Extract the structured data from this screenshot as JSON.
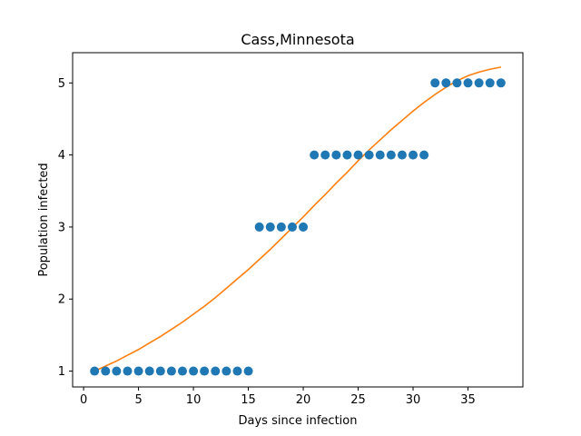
{
  "chart_data": {
    "type": "scatter",
    "title": "Cass,Minnesota",
    "xlabel": "Days since infection",
    "ylabel": "Population infected",
    "xlim": [
      -1.0,
      40.0
    ],
    "ylim": [
      0.78,
      5.42
    ],
    "xticks": [
      0,
      5,
      10,
      15,
      20,
      25,
      30,
      35
    ],
    "yticks": [
      1,
      2,
      3,
      4,
      5
    ],
    "grid": false,
    "series": [
      {
        "kind": "scatter",
        "color": "#1f77b4",
        "x": [
          1,
          2,
          3,
          4,
          5,
          6,
          7,
          8,
          9,
          10,
          11,
          12,
          13,
          14,
          15,
          16,
          17,
          18,
          19,
          20,
          21,
          22,
          23,
          24,
          25,
          26,
          27,
          28,
          29,
          30,
          31,
          32,
          33,
          34,
          35,
          36,
          37,
          38
        ],
        "y": [
          1,
          1,
          1,
          1,
          1,
          1,
          1,
          1,
          1,
          1,
          1,
          1,
          1,
          1,
          1,
          3,
          3,
          3,
          3,
          3,
          4,
          4,
          4,
          4,
          4,
          4,
          4,
          4,
          4,
          4,
          4,
          5,
          5,
          5,
          5,
          5,
          5,
          5
        ]
      },
      {
        "kind": "line",
        "color": "#ff7f0e",
        "x": [
          1,
          2,
          3,
          4,
          5,
          6,
          7,
          8,
          9,
          10,
          11,
          12,
          13,
          14,
          15,
          16,
          17,
          18,
          19,
          20,
          21,
          22,
          23,
          24,
          25,
          26,
          27,
          28,
          29,
          30,
          31,
          32,
          33,
          34,
          35,
          36,
          37,
          38
        ],
        "y": [
          1.0,
          1.07,
          1.14,
          1.22,
          1.3,
          1.39,
          1.48,
          1.58,
          1.68,
          1.79,
          1.9,
          2.02,
          2.15,
          2.28,
          2.41,
          2.55,
          2.69,
          2.84,
          2.99,
          3.14,
          3.3,
          3.45,
          3.61,
          3.76,
          3.92,
          4.07,
          4.21,
          4.35,
          4.48,
          4.61,
          4.73,
          4.84,
          4.94,
          5.03,
          5.1,
          5.15,
          5.19,
          5.22
        ]
      }
    ]
  }
}
